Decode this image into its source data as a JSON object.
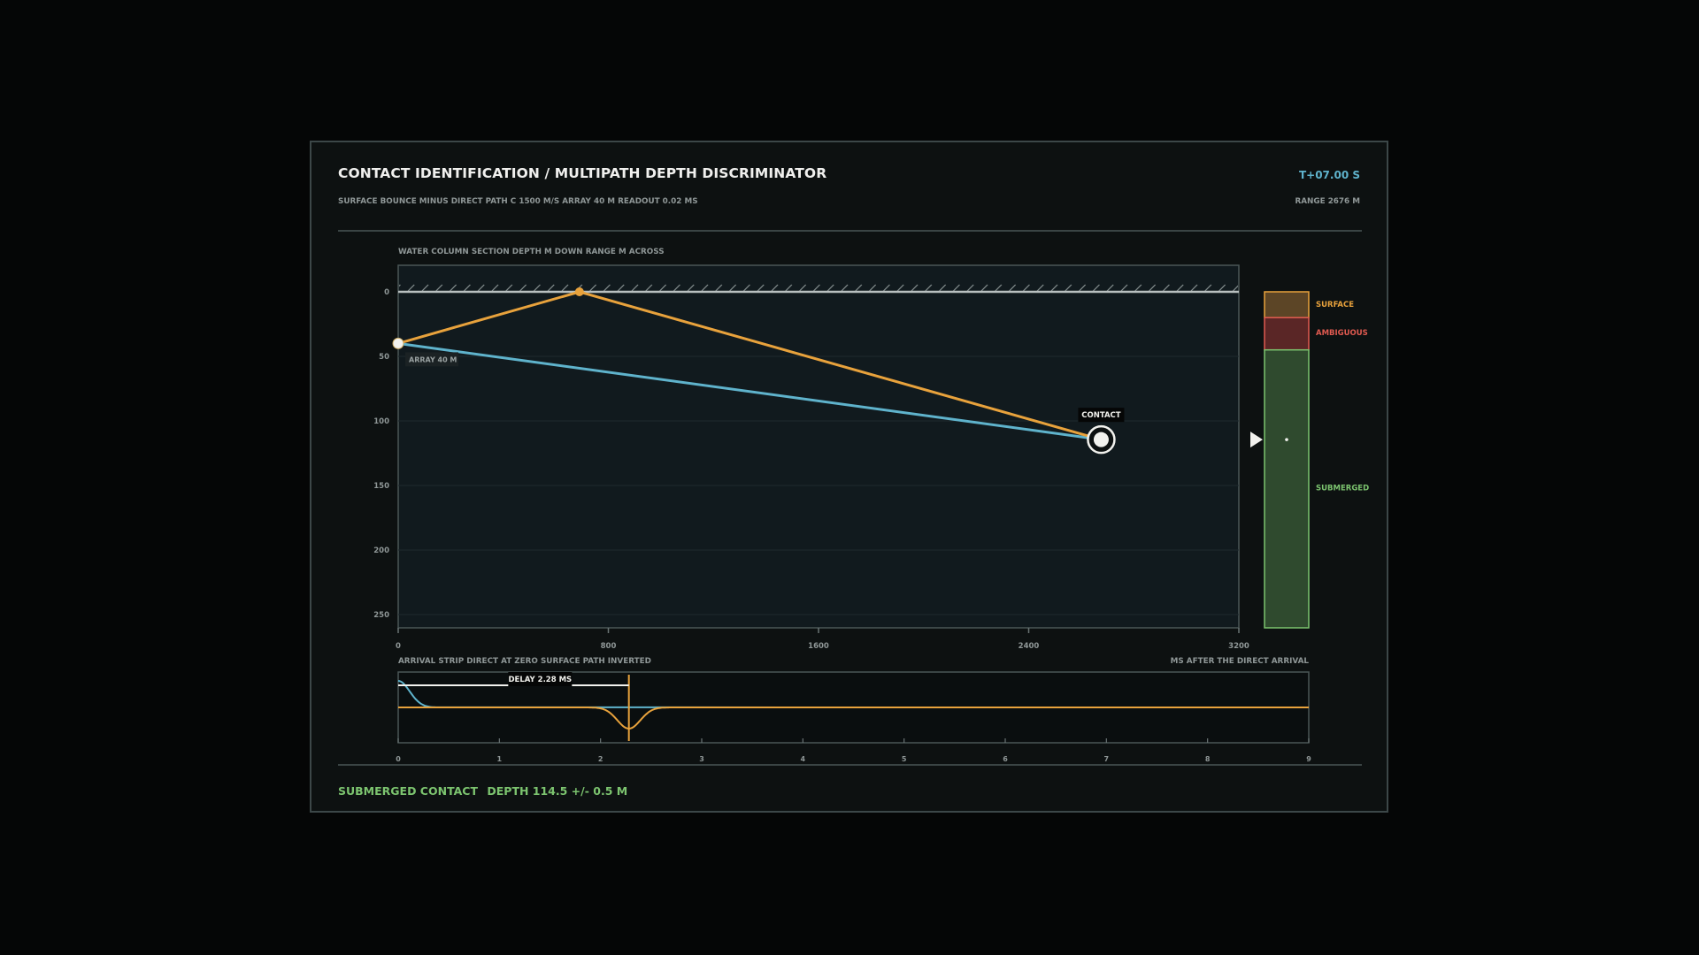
{
  "header": {
    "title": "CONTACT IDENTIFICATION / MULTIPATH DEPTH DISCRIMINATOR",
    "subtitle": "SURFACE BOUNCE MINUS DIRECT PATH   C 1500 M/S   ARRAY 40 M   READOUT 0.02 MS",
    "timer": "T+07.00 S",
    "range": "RANGE 2676 M"
  },
  "section": {
    "caption": "WATER COLUMN SECTION   DEPTH M DOWN   RANGE M ACROSS",
    "depth_ticks": [
      "0",
      "50",
      "100",
      "150",
      "200",
      "250"
    ],
    "range_ticks": [
      "0",
      "800",
      "1600",
      "2400",
      "3200"
    ],
    "array_label": "ARRAY 40 M",
    "contact_label": "CONTACT"
  },
  "geometry": {
    "array": {
      "range": 0,
      "depth": 40
    },
    "bounce": {
      "range": 690,
      "depth": 0
    },
    "contact": {
      "range": 2676,
      "depth": 114.5
    },
    "depth_max": 260,
    "range_max": 3200
  },
  "classifier": {
    "zones": [
      {
        "name": "SURFACE",
        "from": 0,
        "to": 20,
        "color": "#e8a23c"
      },
      {
        "name": "AMBIGUOUS",
        "from": 20,
        "to": 45,
        "color": "#e05a50"
      },
      {
        "name": "SUBMERGED",
        "from": 45,
        "to": 260,
        "color": "#7cc46f"
      }
    ]
  },
  "strip": {
    "caption_left": "ARRIVAL STRIP   DIRECT AT ZERO   SURFACE PATH INVERTED",
    "caption_right": "MS AFTER THE DIRECT ARRIVAL",
    "delay_label": "DELAY 2.28 MS",
    "delay_ms": 2.28,
    "ticks": [
      "0",
      "1",
      "2",
      "3",
      "4",
      "5",
      "6",
      "7",
      "8",
      "9"
    ]
  },
  "status": {
    "classification": "SUBMERGED CONTACT",
    "depth": "DEPTH 114.5 +/- 0.5 M"
  },
  "colors": {
    "direct": "#5fb3cc",
    "surface": "#e8a23c",
    "submerged": "#7cc46f"
  }
}
